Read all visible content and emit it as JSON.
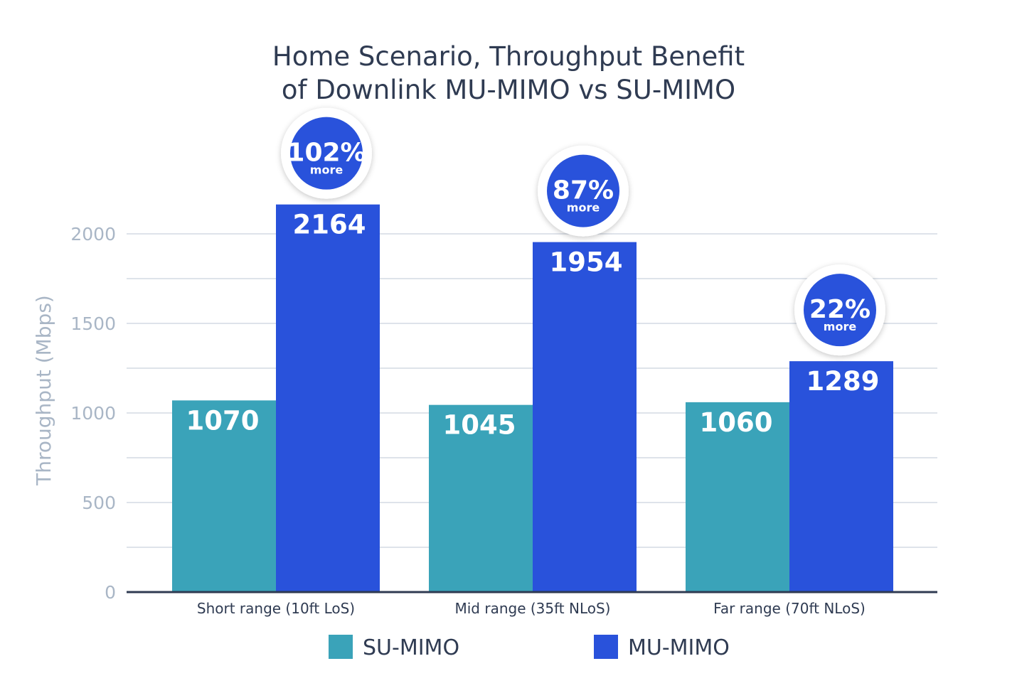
{
  "chart_data": {
    "type": "bar",
    "title": [
      "Home Scenario, Throughput Benefit",
      "of Downlink MU-MIMO vs SU-MIMO"
    ],
    "ylabel": "Throughput (Mbps)",
    "xlabel": "",
    "ylim": [
      0,
      2000
    ],
    "yticks": [
      0,
      500,
      1000,
      1500,
      2000
    ],
    "grid": true,
    "legend_position": "bottom",
    "categories": [
      "Short range (10ft LoS)",
      "Mid range (35ft NLoS)",
      "Far range (70ft NLoS)"
    ],
    "series": [
      {
        "name": "SU-MIMO",
        "color": "#3aa3b9",
        "values": [
          1070,
          1045,
          1060
        ]
      },
      {
        "name": "MU-MIMO",
        "color": "#2952db",
        "values": [
          2164,
          1954,
          1289
        ]
      }
    ],
    "annotations": [
      {
        "category": "Short range (10ft LoS)",
        "value": "102%",
        "sub": "more"
      },
      {
        "category": "Mid range (35ft NLoS)",
        "value": "87%",
        "sub": "more"
      },
      {
        "category": "Far range (70ft NLoS)",
        "value": "22%",
        "sub": "more"
      }
    ],
    "colors": {
      "title": "#2f3b52",
      "axis": "#2f3b52",
      "grid": "#d3dae3",
      "tick": "#a9b6c6",
      "badge": "#2952db"
    }
  }
}
